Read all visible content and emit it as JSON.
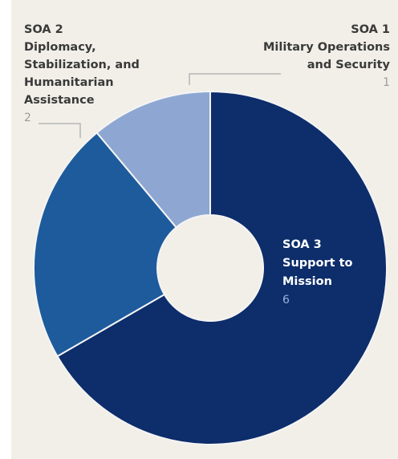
{
  "chart_data": {
    "type": "pie",
    "donut": true,
    "slices": [
      {
        "code": "SOA 1",
        "label_lines": [
          "Military Operations",
          "and Security"
        ],
        "value": 1,
        "color": "#8ea7d2"
      },
      {
        "code": "SOA 3",
        "label_lines": [
          "Support to",
          "Mission"
        ],
        "value": 6,
        "color": "#0d2d6b"
      },
      {
        "code": "SOA 2",
        "label_lines": [
          "Diplomacy,",
          "Stabilization, and",
          "Humanitarian",
          "Assistance"
        ],
        "value": 2,
        "color": "#1d5b9c"
      }
    ],
    "colors": {
      "panel": "#f1efe8",
      "label_dark": "#3a3a3a",
      "label_light": "#ffffff",
      "value_dark": "#9a9a9a",
      "value_light": "#9ab3db",
      "leader": "#b5b5b5"
    }
  }
}
